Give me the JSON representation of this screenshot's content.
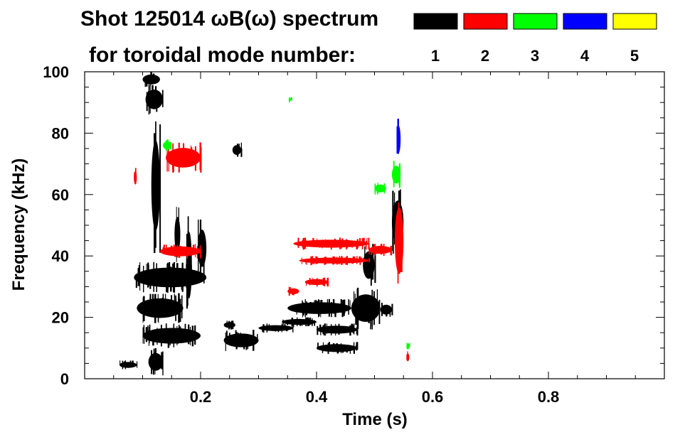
{
  "chart_data": {
    "type": "heatmap",
    "title_line1": "Shot 125014 ωB(ω) spectrum",
    "title_line2": "for toroidal mode number:",
    "xlabel": "Time (s)",
    "ylabel": "Frequency (kHz)",
    "xlim": [
      0,
      1.0
    ],
    "ylim": [
      0,
      100
    ],
    "x_ticks": [
      0.2,
      0.4,
      0.6,
      0.8
    ],
    "x_tick_labels": [
      "0.2",
      "0.4",
      "0.6",
      "0.8"
    ],
    "y_ticks": [
      0,
      20,
      40,
      60,
      80,
      100
    ],
    "y_tick_labels": [
      "0",
      "20",
      "40",
      "60",
      "80",
      "100"
    ],
    "legend": [
      {
        "label": "1",
        "color": "#000000"
      },
      {
        "label": "2",
        "color": "#ff0000"
      },
      {
        "label": "3",
        "color": "#00ff00"
      },
      {
        "label": "4",
        "color": "#0000ff"
      },
      {
        "label": "5",
        "color": "#ffff00"
      }
    ],
    "series": [
      {
        "name": "1",
        "color": "#000000",
        "blobs": [
          {
            "t0": 0.1,
            "t1": 0.13,
            "f0": 95,
            "f1": 100
          },
          {
            "t0": 0.105,
            "t1": 0.135,
            "f0": 86,
            "f1": 96
          },
          {
            "t0": 0.115,
            "t1": 0.13,
            "f0": 40,
            "f1": 86
          },
          {
            "t0": 0.085,
            "t1": 0.21,
            "f0": 28,
            "f1": 38
          },
          {
            "t0": 0.09,
            "t1": 0.17,
            "f0": 18,
            "f1": 28
          },
          {
            "t0": 0.1,
            "t1": 0.2,
            "f0": 10,
            "f1": 18
          },
          {
            "t0": 0.11,
            "t1": 0.135,
            "f0": 1,
            "f1": 10
          },
          {
            "t0": 0.195,
            "t1": 0.21,
            "f0": 33,
            "f1": 52
          },
          {
            "t0": 0.155,
            "t1": 0.165,
            "f0": 38,
            "f1": 56
          },
          {
            "t0": 0.175,
            "t1": 0.185,
            "f0": 20,
            "f1": 54
          },
          {
            "t0": 0.255,
            "t1": 0.27,
            "f0": 72,
            "f1": 77
          },
          {
            "t0": 0.24,
            "t1": 0.3,
            "f0": 9,
            "f1": 16
          },
          {
            "t0": 0.24,
            "t1": 0.26,
            "f0": 16,
            "f1": 19
          },
          {
            "t0": 0.3,
            "t1": 0.36,
            "f0": 15,
            "f1": 18
          },
          {
            "t0": 0.34,
            "t1": 0.4,
            "f0": 17,
            "f1": 20
          },
          {
            "t0": 0.35,
            "t1": 0.46,
            "f0": 20,
            "f1": 26
          },
          {
            "t0": 0.4,
            "t1": 0.47,
            "f0": 14,
            "f1": 18
          },
          {
            "t0": 0.4,
            "t1": 0.47,
            "f0": 8,
            "f1": 12
          },
          {
            "t0": 0.46,
            "t1": 0.51,
            "f0": 16,
            "f1": 30
          },
          {
            "t0": 0.51,
            "t1": 0.53,
            "f0": 20,
            "f1": 25
          },
          {
            "t0": 0.48,
            "t1": 0.5,
            "f0": 30,
            "f1": 44
          },
          {
            "t0": 0.53,
            "t1": 0.55,
            "f0": 40,
            "f1": 62
          },
          {
            "t0": 0.06,
            "t1": 0.09,
            "f0": 3,
            "f1": 6
          }
        ]
      },
      {
        "name": "2",
        "color": "#ff0000",
        "blobs": [
          {
            "t0": 0.14,
            "t1": 0.2,
            "f0": 67,
            "f1": 77
          },
          {
            "t0": 0.085,
            "t1": 0.09,
            "f0": 62,
            "f1": 69
          },
          {
            "t0": 0.13,
            "t1": 0.2,
            "f0": 39,
            "f1": 44
          },
          {
            "t0": 0.36,
            "t1": 0.49,
            "f0": 42,
            "f1": 46
          },
          {
            "t0": 0.37,
            "t1": 0.49,
            "f0": 37,
            "f1": 40
          },
          {
            "t0": 0.49,
            "t1": 0.53,
            "f0": 40,
            "f1": 44
          },
          {
            "t0": 0.38,
            "t1": 0.42,
            "f0": 30,
            "f1": 33
          },
          {
            "t0": 0.535,
            "t1": 0.55,
            "f0": 28,
            "f1": 62
          },
          {
            "t0": 0.35,
            "t1": 0.37,
            "f0": 27,
            "f1": 30
          },
          {
            "t0": 0.555,
            "t1": 0.56,
            "f0": 5,
            "f1": 9
          }
        ]
      },
      {
        "name": "3",
        "color": "#00ff00",
        "blobs": [
          {
            "t0": 0.135,
            "t1": 0.15,
            "f0": 74,
            "f1": 78
          },
          {
            "t0": 0.53,
            "t1": 0.545,
            "f0": 62,
            "f1": 71
          },
          {
            "t0": 0.5,
            "t1": 0.52,
            "f0": 60,
            "f1": 64
          },
          {
            "t0": 0.555,
            "t1": 0.56,
            "f0": 9,
            "f1": 12
          },
          {
            "t0": 0.352,
            "t1": 0.356,
            "f0": 90,
            "f1": 92
          }
        ]
      },
      {
        "name": "4",
        "color": "#0000ff",
        "blobs": [
          {
            "t0": 0.538,
            "t1": 0.545,
            "f0": 71,
            "f1": 85
          }
        ]
      },
      {
        "name": "5",
        "color": "#ffff00",
        "blobs": []
      }
    ]
  }
}
